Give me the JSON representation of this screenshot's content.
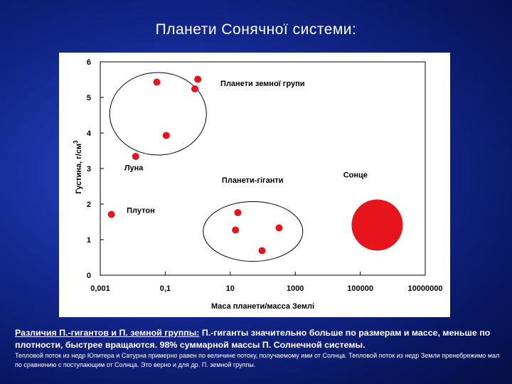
{
  "slide": {
    "title": "Планети Сонячної системи:",
    "caption_underlined": "Различия П.-гигантов и П. земной группы:",
    "caption_rest": " П.-гиганты значительно больше по размерам и массе, меньше по плотности, быстрее вращаются. 98% суммарной массы П. Солнечной системы.",
    "caption_note": "Тепловой поток из недр Юпитера и Сатурна примерно равен по величине потоку, получаемому ими от Солнца. Тепловой поток из недр Земли пренебрежимо мал по сравнению с поступающим от Солнца. Это верно и для др. П. земной группы."
  },
  "chart_data": {
    "type": "scatter",
    "xscale": "log",
    "xlim": [
      0.001,
      10000000
    ],
    "ylim": [
      0,
      6
    ],
    "xticks": [
      "0,001",
      "0,1",
      "10",
      "1000",
      "100000",
      "10000000"
    ],
    "yticks": [
      "0",
      "1",
      "2",
      "3",
      "4",
      "5",
      "6"
    ],
    "xlabel": "Маса планети/масса Землі",
    "ylabel_main": "Густина, г/см",
    "ylabel_sup": "3",
    "point_color": "#e8141c",
    "points": [
      {
        "x": 0.055,
        "y": 5.43
      },
      {
        "x": 0.815,
        "y": 5.24
      },
      {
        "x": 1.0,
        "y": 5.51
      },
      {
        "x": 0.107,
        "y": 3.93
      },
      {
        "x": 0.0123,
        "y": 3.34
      },
      {
        "x": 0.0022,
        "y": 1.71
      },
      {
        "x": 318,
        "y": 1.33
      },
      {
        "x": 95,
        "y": 0.69
      },
      {
        "x": 14.5,
        "y": 1.27
      },
      {
        "x": 17.1,
        "y": 1.76
      }
    ],
    "sun": {
      "x": 333000,
      "y": 1.41
    },
    "annotations": {
      "terrestrial": "Планети земної групи",
      "moon": "Луна",
      "giants": "Планети-гіганти",
      "pluto": "Плутон",
      "sun": "Сонце"
    }
  }
}
